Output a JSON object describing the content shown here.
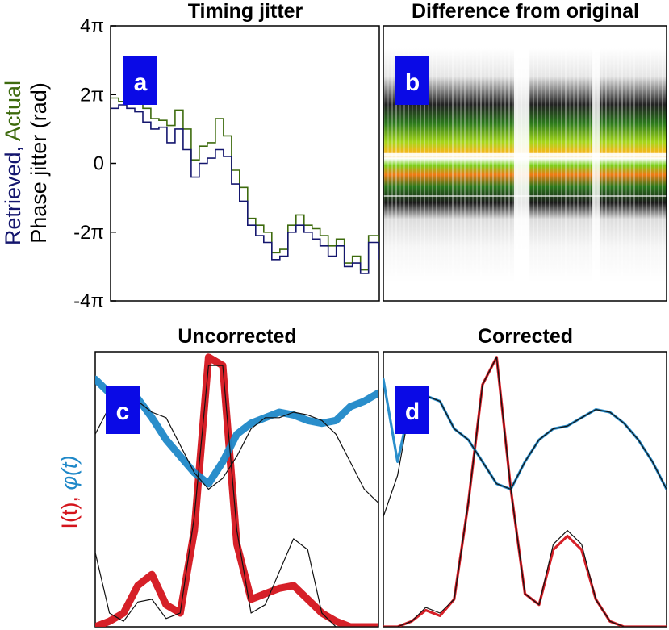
{
  "chart_data": [
    {
      "panel": "a",
      "type": "line",
      "title": "Timing jitter",
      "ylabel_parts": [
        {
          "text": "Retrieved",
          "color": "#14166e"
        },
        {
          "text": ", ",
          "color": "#14166e"
        },
        {
          "text": "Actual",
          "color": "#3e6b0e"
        }
      ],
      "ylabel_line2": "Phase jitter (rad)",
      "ylim_pi": [
        -4,
        4
      ],
      "yticks_pi": [
        4,
        2,
        0,
        -2,
        -4
      ],
      "ytick_labels": [
        "4π",
        "2π",
        "0",
        "-2π",
        "-4π"
      ],
      "x": [
        0,
        0.03,
        0.06,
        0.09,
        0.12,
        0.15,
        0.18,
        0.21,
        0.24,
        0.27,
        0.3,
        0.33,
        0.36,
        0.39,
        0.42,
        0.45,
        0.48,
        0.51,
        0.54,
        0.57,
        0.6,
        0.63,
        0.66,
        0.69,
        0.72,
        0.75,
        0.78,
        0.81,
        0.84,
        0.87,
        0.9,
        0.93,
        0.96,
        1.0
      ],
      "series": [
        {
          "name": "Actual",
          "color": "#3e6b0e",
          "values_pi": [
            1.9,
            1.8,
            1.75,
            1.95,
            1.6,
            1.3,
            1.25,
            1.1,
            1.55,
            1.0,
            0.1,
            0.5,
            0.6,
            1.3,
            0.8,
            -0.2,
            -0.7,
            -1.6,
            -1.8,
            -2.0,
            -2.6,
            -2.5,
            -1.8,
            -1.5,
            -1.8,
            -1.9,
            -2.1,
            -2.4,
            -2.2,
            -2.9,
            -2.7,
            -3.1,
            -2.1,
            -2.5
          ]
        },
        {
          "name": "Retrieved",
          "color": "#14166e",
          "values_pi": [
            1.6,
            1.7,
            1.6,
            1.5,
            1.2,
            1.0,
            1.05,
            0.6,
            1.0,
            0.4,
            -0.4,
            0.0,
            0.15,
            0.4,
            0.2,
            -0.6,
            -1.1,
            -1.8,
            -2.1,
            -2.3,
            -2.8,
            -2.7,
            -2.0,
            -1.8,
            -2.0,
            -2.2,
            -2.4,
            -2.7,
            -2.4,
            -3.0,
            -2.9,
            -3.2,
            -2.3,
            -2.8
          ]
        }
      ]
    },
    {
      "panel": "b",
      "type": "heatmap",
      "title": "Difference from original",
      "colormap": [
        "#ffffff",
        "#111111",
        "#2c7a1c",
        "#7ad11a",
        "#f2e21b",
        "#f07a14"
      ]
    },
    {
      "panel": "c",
      "type": "line",
      "title": "Uncorrected",
      "ylabel_parts": [
        {
          "text": "I(t)",
          "color": "#d4141c"
        },
        {
          "text": ", ",
          "color": "#d4141c"
        },
        {
          "text": "φ(t)",
          "color": "#1f88c8"
        }
      ],
      "x": [
        0,
        0.05,
        0.1,
        0.15,
        0.2,
        0.25,
        0.3,
        0.35,
        0.4,
        0.45,
        0.5,
        0.55,
        0.6,
        0.65,
        0.7,
        0.75,
        0.8,
        0.85,
        0.9,
        0.95,
        1.0
      ],
      "series": [
        {
          "name": "Intensity (reference)",
          "color": "#111111",
          "values": [
            0.27,
            0.05,
            0.02,
            0.09,
            0.1,
            0.03,
            0.05,
            0.4,
            0.95,
            0.95,
            0.35,
            0.05,
            0.08,
            0.2,
            0.32,
            0.28,
            0.05,
            0.0,
            0.0,
            0.0,
            0.0
          ]
        },
        {
          "name": "Intensity (retrieved band)",
          "color": "#d4141c",
          "values": [
            0.0,
            0.02,
            0.05,
            0.15,
            0.19,
            0.08,
            0.05,
            0.35,
            0.98,
            0.95,
            0.3,
            0.1,
            0.12,
            0.14,
            0.15,
            0.1,
            0.05,
            0.02,
            0.0,
            0.0,
            0.0
          ]
        },
        {
          "name": "Phase (reference)",
          "color": "#111111",
          "values": [
            0.7,
            0.8,
            0.84,
            0.82,
            0.78,
            0.76,
            0.66,
            0.56,
            0.5,
            0.54,
            0.62,
            0.72,
            0.76,
            0.76,
            0.78,
            0.77,
            0.75,
            0.7,
            0.6,
            0.5,
            0.45
          ]
        },
        {
          "name": "Phase (retrieved band)",
          "color": "#1f88c8",
          "values": [
            0.9,
            0.85,
            0.8,
            0.83,
            0.76,
            0.68,
            0.62,
            0.56,
            0.52,
            0.6,
            0.7,
            0.74,
            0.76,
            0.78,
            0.77,
            0.75,
            0.74,
            0.75,
            0.8,
            0.82,
            0.85
          ]
        }
      ]
    },
    {
      "panel": "d",
      "type": "line",
      "title": "Corrected",
      "x": [
        0,
        0.05,
        0.1,
        0.15,
        0.2,
        0.25,
        0.3,
        0.35,
        0.4,
        0.45,
        0.5,
        0.55,
        0.6,
        0.65,
        0.7,
        0.75,
        0.8,
        0.85,
        0.9,
        0.95,
        1.0
      ],
      "series": [
        {
          "name": "Intensity (reference)",
          "color": "#111111",
          "values": [
            0.0,
            0.0,
            0.02,
            0.07,
            0.05,
            0.1,
            0.45,
            0.88,
            0.98,
            0.5,
            0.12,
            0.08,
            0.3,
            0.35,
            0.3,
            0.1,
            0.02,
            0.0,
            0.0,
            0.0,
            0.0
          ]
        },
        {
          "name": "Intensity (retrieved)",
          "color": "#d4141c",
          "values": [
            0.0,
            0.0,
            0.02,
            0.06,
            0.04,
            0.1,
            0.45,
            0.88,
            0.98,
            0.5,
            0.12,
            0.08,
            0.28,
            0.33,
            0.28,
            0.1,
            0.02,
            0.0,
            0.0,
            0.0,
            0.0
          ]
        },
        {
          "name": "Phase (reference)",
          "color": "#111111",
          "values": [
            0.4,
            0.55,
            0.83,
            0.84,
            0.82,
            0.72,
            0.68,
            0.6,
            0.52,
            0.5,
            0.6,
            0.68,
            0.72,
            0.73,
            0.76,
            0.79,
            0.78,
            0.74,
            0.68,
            0.6,
            0.5
          ]
        },
        {
          "name": "Phase (retrieved)",
          "color": "#1f88c8",
          "values": [
            0.9,
            0.6,
            0.83,
            0.84,
            0.82,
            0.72,
            0.68,
            0.6,
            0.52,
            0.5,
            0.6,
            0.68,
            0.72,
            0.73,
            0.76,
            0.79,
            0.78,
            0.74,
            0.68,
            0.6,
            0.5
          ]
        }
      ]
    }
  ]
}
